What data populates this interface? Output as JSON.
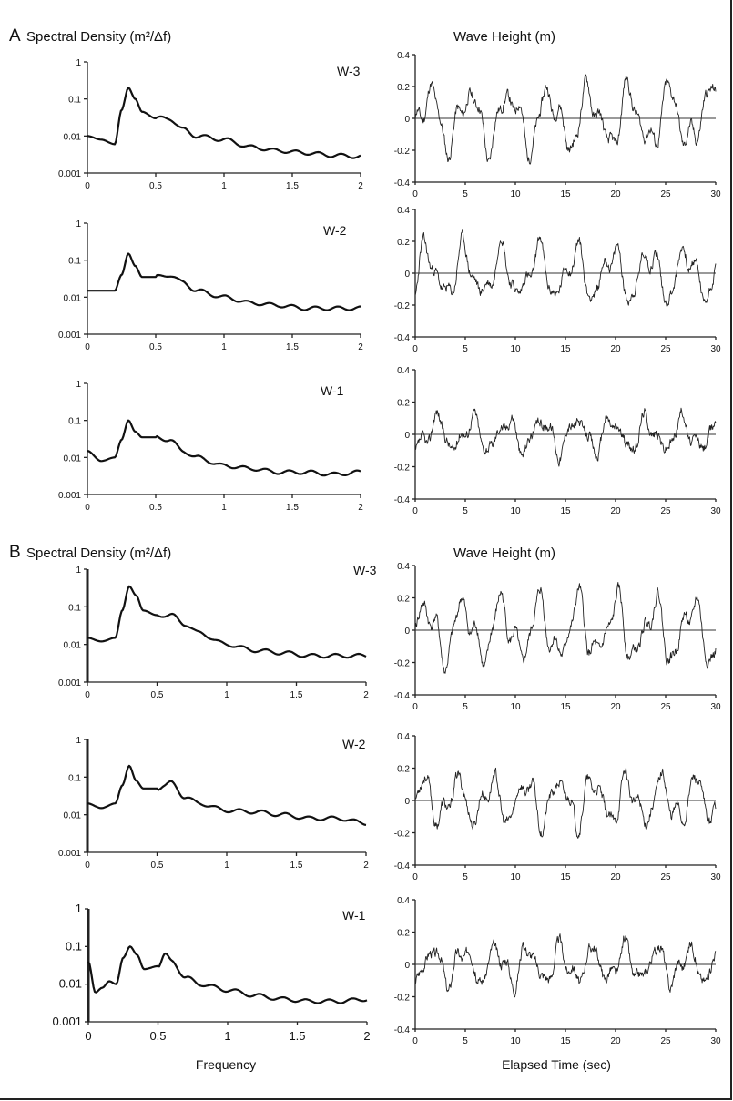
{
  "figure": {
    "sections": [
      {
        "letter": "A",
        "spectral_title": "Spectral Density  (m²/Δf)",
        "wave_title": "Wave Height (m)"
      },
      {
        "letter": "B",
        "spectral_title": "Spectral Density  (m²/Δf)",
        "wave_title": "Wave Height (m)"
      }
    ],
    "xlabel_frequency": "Frequency",
    "xlabel_time": "Elapsed Time (sec)"
  },
  "chart_data": [
    {
      "id": "A-W3-spec",
      "type": "line",
      "panel": "W-3",
      "scale": "log",
      "xlim": [
        0,
        2
      ],
      "ylim": [
        0.001,
        1
      ],
      "xticks": [
        "0",
        "0.5",
        "1",
        "1.5",
        "2"
      ],
      "yticks": [
        "1",
        "0.1",
        "0.01",
        "0.001"
      ],
      "x": [
        0,
        0.1,
        0.2,
        0.25,
        0.3,
        0.35,
        0.4,
        0.5,
        0.6,
        0.7,
        0.8,
        1.0,
        1.2,
        1.4,
        1.6,
        1.8,
        2.0
      ],
      "y": [
        0.01,
        0.008,
        0.006,
        0.05,
        0.2,
        0.1,
        0.045,
        0.03,
        0.03,
        0.015,
        0.01,
        0.008,
        0.005,
        0.004,
        0.0035,
        0.003,
        0.0028
      ]
    },
    {
      "id": "A-W3-wave",
      "type": "line",
      "panel": "W-3",
      "xlim": [
        0,
        30
      ],
      "ylim": [
        -0.4,
        0.4
      ],
      "xticks": [
        "0",
        "5",
        "10",
        "15",
        "20",
        "25",
        "30"
      ],
      "yticks": [
        "0.4",
        "0.2",
        "0",
        "-0.2",
        "-0.4"
      ],
      "seed": 11,
      "period": 4.0,
      "amp": 0.2
    },
    {
      "id": "A-W2-spec",
      "type": "line",
      "panel": "W-2",
      "scale": "log",
      "xlim": [
        0,
        2
      ],
      "ylim": [
        0.001,
        1
      ],
      "xticks": [
        "0",
        "0.5",
        "1",
        "1.5",
        "2"
      ],
      "yticks": [
        "1",
        "0.1",
        "0.01",
        "0.001"
      ],
      "x": [
        0,
        0.1,
        0.2,
        0.25,
        0.3,
        0.35,
        0.4,
        0.5,
        0.6,
        0.7,
        0.8,
        1.0,
        1.2,
        1.4,
        1.6,
        1.8,
        2.0
      ],
      "y": [
        0.015,
        0.015,
        0.015,
        0.04,
        0.15,
        0.07,
        0.035,
        0.035,
        0.04,
        0.025,
        0.015,
        0.01,
        0.007,
        0.006,
        0.005,
        0.005,
        0.005
      ]
    },
    {
      "id": "A-W2-wave",
      "type": "line",
      "panel": "W-2",
      "xlim": [
        0,
        30
      ],
      "ylim": [
        -0.4,
        0.4
      ],
      "xticks": [
        "0",
        "5",
        "10",
        "15",
        "20",
        "25",
        "30"
      ],
      "yticks": [
        "0.4",
        "0.2",
        "0",
        "-0.2",
        "-0.4"
      ],
      "seed": 23,
      "period": 3.7,
      "amp": 0.17
    },
    {
      "id": "A-W1-spec",
      "type": "line",
      "panel": "W-1",
      "scale": "log",
      "xlim": [
        0,
        2
      ],
      "ylim": [
        0.001,
        1
      ],
      "xticks": [
        "0",
        "0.5",
        "1",
        "1.5",
        "2"
      ],
      "yticks": [
        "1",
        "0.1",
        "0.01",
        "0.001"
      ],
      "x": [
        0,
        0.1,
        0.2,
        0.25,
        0.3,
        0.35,
        0.4,
        0.5,
        0.6,
        0.7,
        0.8,
        1.0,
        1.2,
        1.4,
        1.6,
        1.8,
        2.0
      ],
      "y": [
        0.015,
        0.008,
        0.01,
        0.03,
        0.1,
        0.05,
        0.035,
        0.035,
        0.03,
        0.015,
        0.01,
        0.006,
        0.005,
        0.004,
        0.004,
        0.0035,
        0.004
      ]
    },
    {
      "id": "A-W1-wave",
      "type": "line",
      "panel": "W-1",
      "xlim": [
        0,
        30
      ],
      "ylim": [
        -0.4,
        0.4
      ],
      "xticks": [
        "0",
        "5",
        "10",
        "15",
        "20",
        "25",
        "30"
      ],
      "yticks": [
        "0.4",
        "0.2",
        "0",
        "-0.2",
        "-0.4"
      ],
      "seed": 37,
      "period": 3.5,
      "amp": 0.11
    },
    {
      "id": "B-W3-spec",
      "type": "line",
      "panel": "W-3",
      "scale": "log",
      "xlim": [
        0,
        2
      ],
      "ylim": [
        0.001,
        1
      ],
      "xticks": [
        "0",
        "0.5",
        "1",
        "1.5",
        "2"
      ],
      "yticks": [
        "1",
        "0.1",
        "0.01",
        "0.001"
      ],
      "x": [
        0,
        0.1,
        0.2,
        0.25,
        0.3,
        0.35,
        0.4,
        0.5,
        0.6,
        0.7,
        0.8,
        1.0,
        1.2,
        1.4,
        1.6,
        1.8,
        2.0
      ],
      "y": [
        0.015,
        0.012,
        0.015,
        0.08,
        0.35,
        0.2,
        0.08,
        0.06,
        0.06,
        0.035,
        0.02,
        0.01,
        0.007,
        0.006,
        0.005,
        0.005,
        0.005
      ]
    },
    {
      "id": "B-W3-wave",
      "type": "line",
      "panel": "W-3",
      "xlim": [
        0,
        30
      ],
      "ylim": [
        -0.4,
        0.4
      ],
      "xticks": [
        "0",
        "5",
        "10",
        "15",
        "20",
        "25",
        "30"
      ],
      "yticks": [
        "0.4",
        "0.2",
        "0",
        "-0.2",
        "-0.4"
      ],
      "seed": 41,
      "period": 3.8,
      "amp": 0.2
    },
    {
      "id": "B-W2-spec",
      "type": "line",
      "panel": "W-2",
      "scale": "log",
      "xlim": [
        0,
        2
      ],
      "ylim": [
        0.001,
        1
      ],
      "xticks": [
        "0",
        "0.5",
        "1",
        "1.5",
        "2"
      ],
      "yticks": [
        "1",
        "0.1",
        "0.01",
        "0.001"
      ],
      "x": [
        0,
        0.1,
        0.2,
        0.25,
        0.3,
        0.35,
        0.4,
        0.5,
        0.55,
        0.6,
        0.7,
        0.8,
        1.0,
        1.2,
        1.4,
        1.6,
        1.8,
        2.0
      ],
      "y": [
        0.02,
        0.015,
        0.02,
        0.06,
        0.2,
        0.08,
        0.05,
        0.05,
        0.06,
        0.07,
        0.03,
        0.02,
        0.013,
        0.012,
        0.01,
        0.008,
        0.008,
        0.006
      ]
    },
    {
      "id": "B-W2-wave",
      "type": "line",
      "panel": "W-2",
      "xlim": [
        0,
        30
      ],
      "ylim": [
        -0.4,
        0.4
      ],
      "xticks": [
        "0",
        "5",
        "10",
        "15",
        "20",
        "25",
        "30"
      ],
      "yticks": [
        "0.4",
        "0.2",
        "0",
        "-0.2",
        "-0.4"
      ],
      "seed": 53,
      "period": 3.4,
      "amp": 0.15
    },
    {
      "id": "B-W1-spec",
      "type": "line",
      "panel": "W-1",
      "scale": "log",
      "xlim": [
        0,
        2
      ],
      "ylim": [
        0.001,
        1
      ],
      "xticks": [
        "0",
        "0.5",
        "1",
        "1.5",
        "2"
      ],
      "yticks": [
        "1",
        "0.1",
        "0.01",
        "0.001"
      ],
      "x": [
        0,
        0.05,
        0.1,
        0.15,
        0.2,
        0.25,
        0.3,
        0.35,
        0.4,
        0.5,
        0.55,
        0.6,
        0.7,
        0.8,
        1.0,
        1.2,
        1.4,
        1.6,
        1.8,
        2.0
      ],
      "y": [
        0.04,
        0.006,
        0.008,
        0.012,
        0.01,
        0.05,
        0.1,
        0.06,
        0.025,
        0.03,
        0.06,
        0.04,
        0.015,
        0.01,
        0.007,
        0.005,
        0.004,
        0.0035,
        0.0035,
        0.004
      ]
    },
    {
      "id": "B-W1-wave",
      "type": "line",
      "panel": "W-1",
      "xlim": [
        0,
        30
      ],
      "ylim": [
        -0.4,
        0.4
      ],
      "xticks": [
        "0",
        "5",
        "10",
        "15",
        "20",
        "25",
        "30"
      ],
      "yticks": [
        "0.4",
        "0.2",
        "0",
        "-0.2",
        "-0.4"
      ],
      "seed": 67,
      "period": 3.2,
      "amp": 0.12
    }
  ]
}
